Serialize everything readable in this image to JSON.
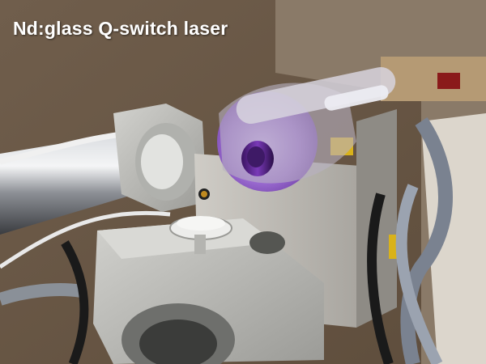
{
  "caption": "Nd:glass Q-switch laser",
  "colors": {
    "caption_text": "#ffffff",
    "wall": "#6b5a48",
    "background_right": "#d9d2c6",
    "aluminum": "#c4c4c0",
    "steel_rod": "#a9adb3",
    "laser_glow": "#8a4fc4",
    "pump_tube_purple": "#5a2a86",
    "cable_black": "#1a1a1a",
    "warning_yellow": "#d9b21a"
  }
}
